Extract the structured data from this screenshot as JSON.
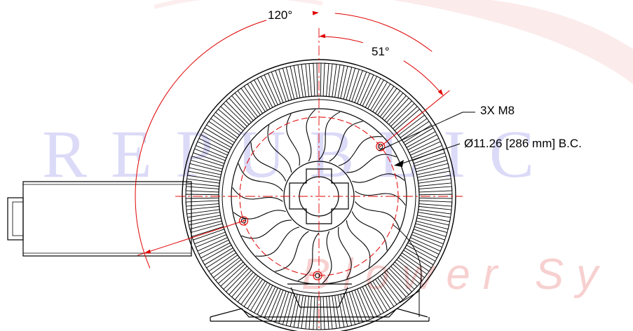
{
  "annotations": {
    "angle_large": "120°",
    "angle_small": "51°",
    "fastener": "3X M8",
    "bolt_circle": "Ø11.26 [286 mm] B.C."
  },
  "watermark": {
    "line1": "REPUBLIC",
    "line2": "Blower Sy"
  },
  "colors": {
    "drawing": "#000000",
    "dimension": "#e00000",
    "watermark_blue": "#3b3ad6",
    "watermark_red": "#e35a5a"
  }
}
